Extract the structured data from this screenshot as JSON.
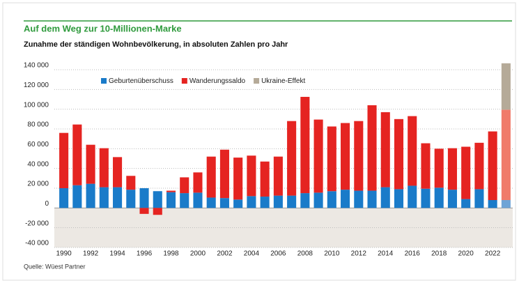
{
  "chart_data": {
    "type": "stacked_bar",
    "title": "Auf dem Weg zur 10-Millionen-Marke",
    "subtitle": "Zunahme der ständigen Wohnbevölkerung, in absoluten Zahlen pro Jahr",
    "source": "Quelle: Wüest Partner",
    "categories": [
      "1990",
      null,
      "1992",
      null,
      "1994",
      null,
      "1996",
      null,
      "1998",
      null,
      "2000",
      null,
      "2002",
      null,
      "2004",
      null,
      "2006",
      null,
      "2008",
      null,
      "2010",
      null,
      "2012",
      null,
      "2014",
      null,
      "2016",
      null,
      "2018",
      null,
      "2020",
      null,
      "2022",
      null
    ],
    "series": [
      {
        "name": "Geburtenüberschuss",
        "color": "#1a7bc9",
        "last_color": "#6fa4d6",
        "values": [
          20000,
          23000,
          24500,
          21000,
          21000,
          18500,
          20000,
          17000,
          16000,
          15000,
          15500,
          10500,
          10000,
          8500,
          12000,
          11500,
          12500,
          12500,
          15000,
          15500,
          17000,
          18500,
          17500,
          17500,
          21000,
          19000,
          22500,
          19500,
          20500,
          18500,
          9000,
          19000,
          8000,
          8000
        ]
      },
      {
        "name": "Wanderungssaldo",
        "color": "#e52421",
        "last_color": "#f07b6a",
        "values": [
          56000,
          61500,
          39500,
          39500,
          30500,
          14000,
          -6000,
          -7000,
          1500,
          16000,
          20500,
          41500,
          49000,
          42500,
          41000,
          35500,
          39500,
          75500,
          97500,
          74000,
          65500,
          67500,
          70500,
          86500,
          76000,
          71000,
          70500,
          46000,
          39500,
          42000,
          53000,
          47000,
          69500,
          91500
        ]
      },
      {
        "name": "Ukraine-Effekt",
        "color": "#b5aa98",
        "last_color": "#b5aa98",
        "values": [
          null,
          null,
          null,
          null,
          null,
          null,
          null,
          null,
          null,
          null,
          null,
          null,
          null,
          null,
          null,
          null,
          null,
          null,
          null,
          null,
          null,
          null,
          null,
          null,
          null,
          null,
          null,
          null,
          null,
          null,
          null,
          null,
          null,
          47000
        ]
      }
    ],
    "ylim": [
      -40000,
      140000
    ],
    "yticks": [
      {
        "value": -40000,
        "label": "-40 000"
      },
      {
        "value": -20000,
        "label": "-20 000"
      },
      0,
      {
        "value": 20000,
        "label": "20 000"
      },
      {
        "value": 40000,
        "label": "40 000"
      },
      {
        "value": 60000,
        "label": "60 000"
      },
      {
        "value": 80000,
        "label": "80 000"
      },
      {
        "value": 100000,
        "label": "100 000"
      },
      {
        "value": 120000,
        "label": "120 000"
      },
      {
        "value": 140000,
        "label": "140 000"
      }
    ],
    "grid": true,
    "negative_shade": "#ece8e3"
  }
}
